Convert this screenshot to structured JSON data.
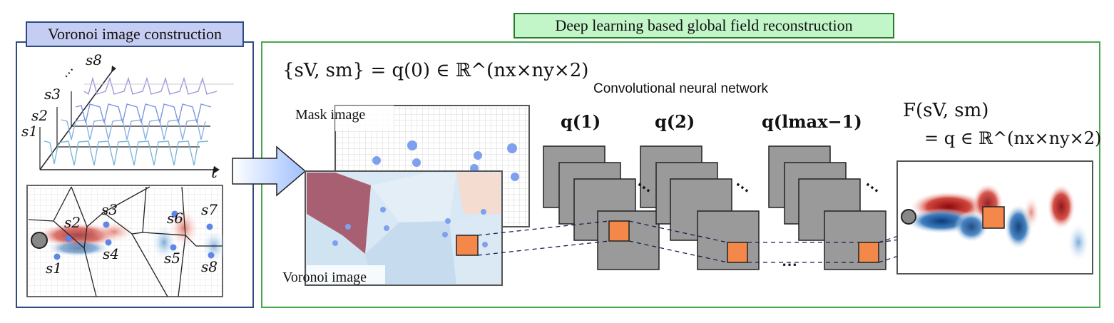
{
  "left_panel": {
    "title": "Voronoi image construction",
    "timeseries": {
      "labels": [
        "s8",
        "s3",
        "s2",
        "s1"
      ],
      "time_axis": "t",
      "ellipsis": "⋯"
    },
    "sensor_labels": [
      "s1",
      "s2",
      "s3",
      "s4",
      "s5",
      "s6",
      "s7",
      "s8"
    ]
  },
  "right_panel": {
    "title": "Deep learning based global field reconstruction",
    "input_eq": "{sV, sm} = q(0) ∈ ℝ^(nx×ny×2)",
    "cnn_label": "Convolutional neural network",
    "mask_label": "Mask image",
    "voronoi_label": "Voronoi image",
    "layer_labels": [
      "q(1)",
      "q(2)",
      "q(lmax−1)"
    ],
    "output_eq_top": "F(sV, sm)",
    "output_eq_bottom": "= q ∈ ℝ^(nx×ny×2)",
    "dots": "⋯"
  },
  "colors": {
    "left_border": "#2e4a82",
    "right_border": "#46a84c",
    "left_title_bg": "#c6cdf3",
    "right_title_bg": "#c2f5c8",
    "feature_map": "#9a9a9a",
    "kernel": "#f4884a",
    "sensor": "#5f86e6",
    "vortex_red": "#b01818",
    "vortex_blue": "#0c3f80"
  }
}
